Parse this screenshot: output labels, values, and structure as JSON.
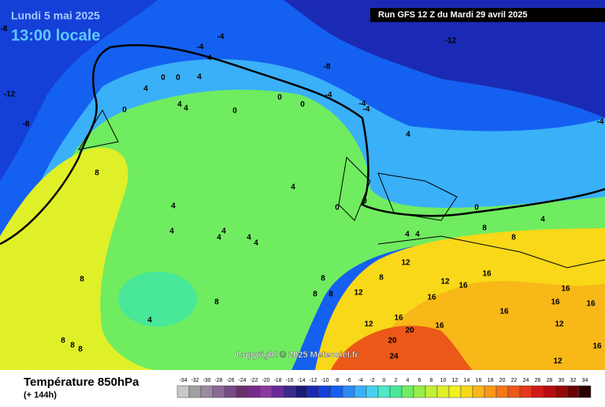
{
  "header": {
    "date": "Lundi 5 mai 2025",
    "time": "13:00 locale",
    "run": "Run GFS 12 Z du Mardi 29 avril 2025"
  },
  "copyright": "Copyright © 2025 Meteociel.fr",
  "legend": {
    "title": "Température 850hPa",
    "subtitle": "(+ 144h)",
    "ticks": [
      -34,
      -32,
      -30,
      -28,
      -26,
      -24,
      -22,
      -20,
      -18,
      -16,
      -14,
      -12,
      -10,
      -8,
      -6,
      -4,
      -2,
      0,
      2,
      4,
      6,
      8,
      10,
      12,
      14,
      16,
      18,
      20,
      22,
      24,
      26,
      28,
      30,
      32,
      34
    ],
    "colors": [
      "#c8c8c8",
      "#a0a0a0",
      "#9a8aa0",
      "#8c6a96",
      "#7a4a86",
      "#6a3070",
      "#7a2a8a",
      "#8a3aa0",
      "#6a2a9a",
      "#3a2a8a",
      "#1a1a7a",
      "#1a2ab4",
      "#1440d8",
      "#1460f0",
      "#2a8af4",
      "#3ab0f8",
      "#48d0f0",
      "#50e8c8",
      "#48e898",
      "#70ec60",
      "#98ee48",
      "#c0f038",
      "#e0f028",
      "#f4f020",
      "#f8d818",
      "#f8b818",
      "#f89818",
      "#f47818",
      "#ec5818",
      "#e43818",
      "#d41818",
      "#b80c10",
      "#940808",
      "#6a0404",
      "#280000"
    ]
  },
  "contour_labels": [
    -8,
    -12,
    -8,
    -4,
    -4,
    4,
    4,
    0,
    0,
    4,
    4,
    4,
    0,
    0,
    0,
    0,
    -4,
    -4,
    -4,
    -8,
    -12,
    4,
    -4,
    4,
    0,
    0,
    0,
    4,
    8,
    8,
    4,
    4,
    4,
    4,
    4,
    4,
    4,
    4,
    8,
    8,
    8,
    4,
    8,
    8,
    8,
    12,
    8,
    12,
    12,
    16,
    16,
    16,
    16,
    16,
    16,
    16,
    12,
    16,
    16,
    12,
    16,
    20,
    20,
    24,
    8,
    8,
    8,
    12
  ]
}
